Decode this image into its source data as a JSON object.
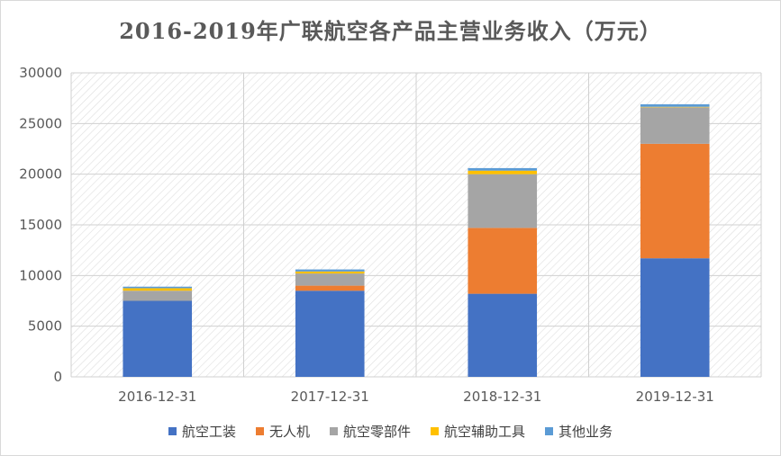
{
  "chart_data": {
    "type": "bar",
    "stacked": true,
    "title": "2016-2019年广联航空各产品主营业务收入（万元）",
    "categories": [
      "2016-12-31",
      "2017-12-31",
      "2018-12-31",
      "2019-12-31"
    ],
    "series": [
      {
        "name": "航空工装",
        "color": "#4472c4",
        "values": [
          7500,
          8500,
          8200,
          11700
        ]
      },
      {
        "name": "无人机",
        "color": "#ed7d31",
        "values": [
          0,
          500,
          6500,
          11300
        ]
      },
      {
        "name": "航空零部件",
        "color": "#a5a5a5",
        "values": [
          1000,
          1200,
          5300,
          3600
        ]
      },
      {
        "name": "航空辅助工具",
        "color": "#ffc000",
        "values": [
          250,
          200,
          350,
          50
        ]
      },
      {
        "name": "其他业务",
        "color": "#5b9bd5",
        "values": [
          150,
          200,
          250,
          250
        ]
      }
    ],
    "ylim": [
      0,
      30000
    ],
    "yticks": [
      0,
      5000,
      10000,
      15000,
      20000,
      25000,
      30000
    ],
    "xlabel": "",
    "ylabel": "",
    "grid": true,
    "legend_position": "bottom"
  }
}
